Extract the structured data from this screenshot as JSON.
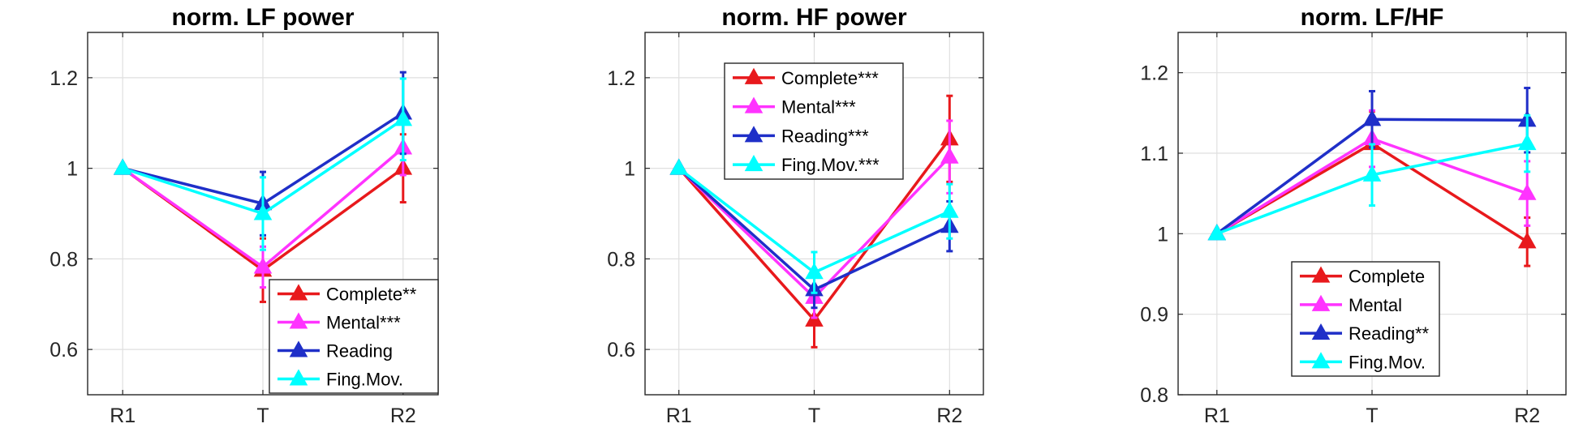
{
  "chart_data": [
    {
      "type": "line",
      "title": "norm. LF power",
      "categories": [
        "R1",
        "T",
        "R2"
      ],
      "ylim": [
        0.5,
        1.3
      ],
      "yticks": [
        "0.6",
        "0.8",
        "1",
        "1.2"
      ],
      "ytick_values": [
        0.6,
        0.8,
        1.0,
        1.2
      ],
      "grid": true,
      "legend_position": "bottom-right",
      "series": [
        {
          "name": "Complete**",
          "color": "#e8191c",
          "values": [
            1.0,
            0.775,
            1.0
          ],
          "err": [
            0,
            0.07,
            0.075
          ]
        },
        {
          "name": "Mental***",
          "color": "#ff33ff",
          "values": [
            1.0,
            0.782,
            1.045
          ],
          "err": [
            0,
            0.045,
            0.06
          ]
        },
        {
          "name": "Reading",
          "color": "#1f2fc8",
          "values": [
            1.0,
            0.922,
            1.122
          ],
          "err": [
            0,
            0.07,
            0.09
          ]
        },
        {
          "name": "Fing.Mov.",
          "color": "#00ffff",
          "values": [
            1.0,
            0.9,
            1.108
          ],
          "err": [
            0,
            0.08,
            0.09
          ]
        }
      ]
    },
    {
      "type": "line",
      "title": "norm. HF power",
      "categories": [
        "R1",
        "T",
        "R2"
      ],
      "ylim": [
        0.5,
        1.3
      ],
      "yticks": [
        "0.6",
        "0.8",
        "1",
        "1.2"
      ],
      "ytick_values": [
        0.6,
        0.8,
        1.0,
        1.2
      ],
      "grid": true,
      "legend_position": "top-center",
      "series": [
        {
          "name": "Complete***",
          "color": "#e8191c",
          "values": [
            1.0,
            0.665,
            1.065
          ],
          "err": [
            0,
            0.06,
            0.095
          ]
        },
        {
          "name": "Mental***",
          "color": "#ff33ff",
          "values": [
            1.0,
            0.715,
            1.025
          ],
          "err": [
            0,
            0.045,
            0.08
          ]
        },
        {
          "name": "Reading***",
          "color": "#1f2fc8",
          "values": [
            1.0,
            0.732,
            0.872
          ],
          "err": [
            0,
            0.04,
            0.055
          ]
        },
        {
          "name": "Fing.Mov.***",
          "color": "#00ffff",
          "values": [
            1.0,
            0.77,
            0.905
          ],
          "err": [
            0,
            0.045,
            0.06
          ]
        }
      ]
    },
    {
      "type": "line",
      "title": "norm. LF/HF",
      "categories": [
        "R1",
        "T",
        "R2"
      ],
      "ylim": [
        0.8,
        1.25
      ],
      "yticks": [
        "0.8",
        "0.9",
        "1",
        "1.1",
        "1.2"
      ],
      "ytick_values": [
        0.8,
        0.9,
        1.0,
        1.1,
        1.2
      ],
      "grid": true,
      "legend_position": "bottom-center",
      "series": [
        {
          "name": "Complete",
          "color": "#e8191c",
          "values": [
            1.0,
            1.112,
            0.99
          ],
          "err": [
            0,
            0.04,
            0.03
          ]
        },
        {
          "name": "Mental",
          "color": "#ff33ff",
          "values": [
            1.0,
            1.118,
            1.05
          ],
          "err": [
            0,
            0.035,
            0.04
          ]
        },
        {
          "name": "Reading**",
          "color": "#1f2fc8",
          "values": [
            1.0,
            1.142,
            1.141
          ],
          "err": [
            0,
            0.035,
            0.04
          ]
        },
        {
          "name": "Fing.Mov.",
          "color": "#00ffff",
          "values": [
            1.0,
            1.073,
            1.112
          ],
          "err": [
            0,
            0.038,
            0.035
          ]
        }
      ]
    }
  ]
}
